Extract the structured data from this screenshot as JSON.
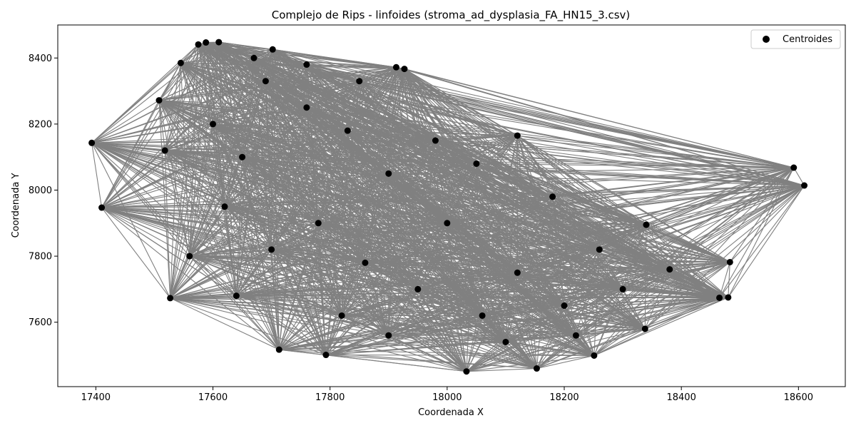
{
  "chart_data": {
    "type": "scatter",
    "title": "Complejo de Rips - linfoides (stroma_ad_dysplasia_FA_HN15_3.csv)",
    "xlabel": "Coordenada X",
    "ylabel": "Coordenada Y",
    "xlim": [
      17335,
      18680
    ],
    "ylim": [
      7405,
      8500
    ],
    "xticks": [
      17400,
      17600,
      17800,
      18000,
      18200,
      18400,
      18600
    ],
    "yticks": [
      7600,
      7800,
      8000,
      8200,
      8400
    ],
    "legend": {
      "position": "top-right",
      "entries": [
        "Centroides"
      ]
    },
    "grid": false,
    "colors": {
      "points": "#000000",
      "edges": "#808080"
    },
    "series": [
      {
        "name": "Centroides",
        "points": [
          [
            17393,
            8143
          ],
          [
            17410,
            7947
          ],
          [
            17508,
            8272
          ],
          [
            17527,
            7673
          ],
          [
            17518,
            8120
          ],
          [
            17545,
            8385
          ],
          [
            17575,
            8441
          ],
          [
            17588,
            8447
          ],
          [
            17610,
            8448
          ],
          [
            17702,
            8426
          ],
          [
            17913,
            8372
          ],
          [
            17927,
            8367
          ],
          [
            17713,
            7517
          ],
          [
            17793,
            7501
          ],
          [
            18033,
            7451
          ],
          [
            18153,
            7460
          ],
          [
            18251,
            7499
          ],
          [
            18338,
            7580
          ],
          [
            18340,
            7895
          ],
          [
            18465,
            7674
          ],
          [
            18480,
            7675
          ],
          [
            18483,
            7782
          ],
          [
            18592,
            8068
          ],
          [
            18610,
            8014
          ],
          [
            18120,
            8165
          ],
          [
            17690,
            8330
          ],
          [
            17760,
            8250
          ],
          [
            17650,
            8100
          ],
          [
            17830,
            8180
          ],
          [
            17900,
            8050
          ],
          [
            17620,
            7950
          ],
          [
            17700,
            7820
          ],
          [
            17780,
            7900
          ],
          [
            17860,
            7780
          ],
          [
            17950,
            7700
          ],
          [
            18000,
            7900
          ],
          [
            18060,
            7620
          ],
          [
            18120,
            7750
          ],
          [
            18200,
            7650
          ],
          [
            18260,
            7820
          ],
          [
            18300,
            7700
          ],
          [
            18180,
            7980
          ],
          [
            17980,
            8150
          ],
          [
            17560,
            7800
          ],
          [
            17640,
            7680
          ],
          [
            17820,
            7620
          ],
          [
            17900,
            7560
          ],
          [
            18100,
            7540
          ],
          [
            18220,
            7560
          ],
          [
            18380,
            7760
          ],
          [
            17670,
            8400
          ],
          [
            17760,
            8380
          ],
          [
            17850,
            8330
          ],
          [
            17600,
            8200
          ],
          [
            18050,
            8080
          ]
        ]
      }
    ]
  }
}
